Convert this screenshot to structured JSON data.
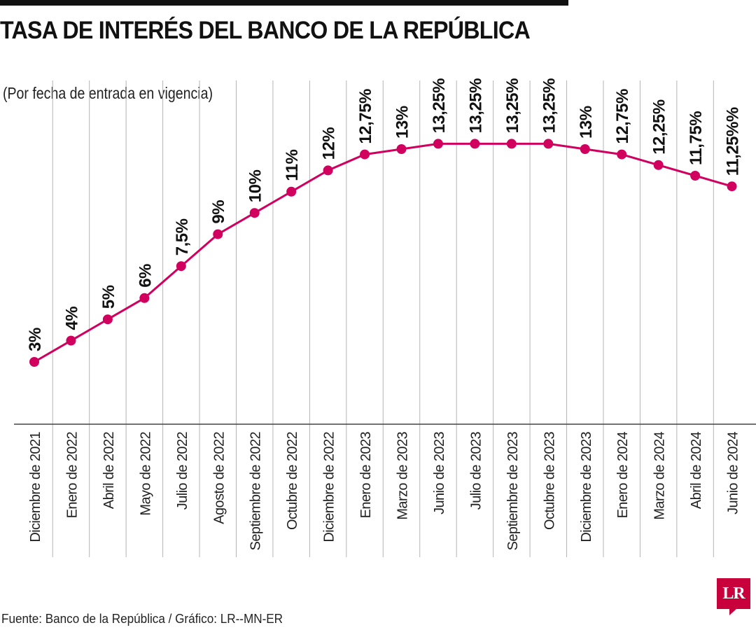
{
  "header": {
    "title": "TASA DE INTERÉS DEL BANCO DE LA REPÚBLICA",
    "subtitle": "(Por fecha de entrada en vigencia)"
  },
  "footer": {
    "source": "Fuente: Banco de la República / Gráfico: LR--MN-ER",
    "logo_text": "LR"
  },
  "colors": {
    "series": "#d1005f",
    "gridline": "#b5b5b5",
    "text": "#111111",
    "logo": "#c8003c"
  },
  "chart_data": {
    "type": "line",
    "title": "TASA DE INTERÉS DEL BANCO DE LA REPÚBLICA",
    "subtitle": "(Por fecha de entrada en vigencia)",
    "categories": [
      "Diciembre de 2021",
      "Enero de 2022",
      "Abril de 2022",
      "Mayo de 2022",
      "Julio de 2022",
      "Agosto de 2022",
      "Septiembre de 2022",
      "Octubre de 2022",
      "Diciembre de 2022",
      "Enero de 2023",
      "Marzo de 2023",
      "Junio de 2023",
      "Julio de 2023",
      "Septiembre de 2023",
      "Octubre de 2023",
      "Diciembre de 2023",
      "Enero de 2024",
      "Marzo de 2024",
      "Abril de 2024",
      "Junio de 2024"
    ],
    "values": [
      3,
      4,
      5,
      6,
      7.5,
      9,
      10,
      11,
      12,
      12.75,
      13,
      13.25,
      13.25,
      13.25,
      13.25,
      13,
      12.75,
      12.25,
      11.75,
      11.25
    ],
    "data_labels": [
      "3%",
      "4%",
      "5%",
      "6%",
      "7,5%",
      "9%",
      "10%",
      "11%",
      "12%",
      "12,75%",
      "13%",
      "13,25%",
      "13,25%",
      "13,25%",
      "13,25%",
      "13%",
      "12,75%",
      "12,25%",
      "11,75%",
      "11,25%%"
    ],
    "xlabel": "",
    "ylabel": "",
    "ylim": [
      0,
      13.25
    ],
    "grid": true,
    "legend": "none"
  }
}
